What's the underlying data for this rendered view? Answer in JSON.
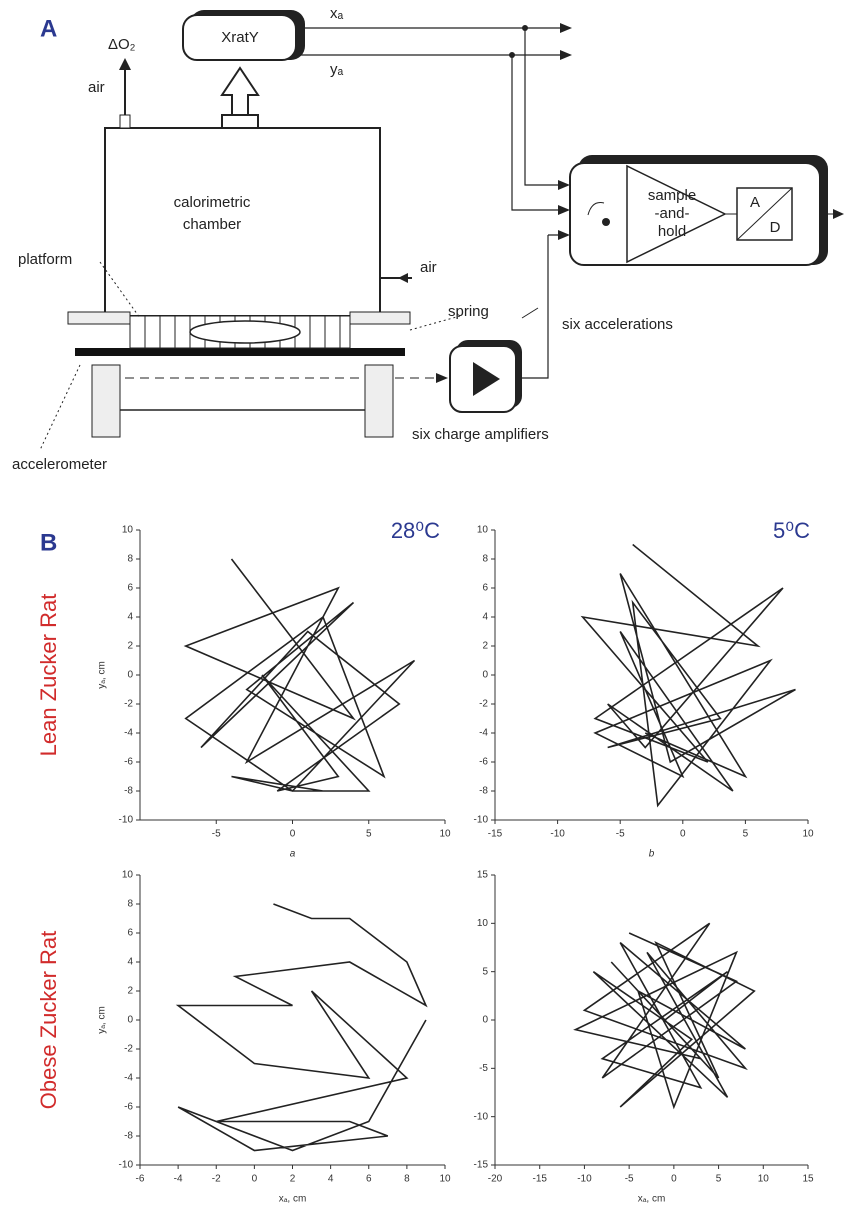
{
  "panel_labels": [
    "A",
    "B"
  ],
  "diagram": {
    "delta_o2": "ΔO₂",
    "air_top": "air",
    "tracker": "XratY",
    "xa": "xₐ",
    "ya": "yₐ",
    "chamber": [
      "calorimetric",
      "chamber"
    ],
    "platform": "platform",
    "air_side": "air",
    "spring": "spring",
    "sample": [
      "sample",
      "-and-",
      "hold"
    ],
    "adc_a": "A",
    "adc_d": "D",
    "accelerations": "six accelerations",
    "amplifiers": "six charge amplifiers",
    "accelerometer": "accelerometer"
  },
  "row_labels": [
    "Lean Zucker Rat",
    "Obese Zucker Rat"
  ],
  "temperatures": [
    "28⁰C",
    "5⁰C"
  ],
  "chart_data": [
    {
      "type": "line",
      "sublabel": "a",
      "ylabel": "yₐ, cm",
      "color": "#222",
      "xlim": [
        -10,
        10
      ],
      "ylim": [
        -10,
        10
      ],
      "xticks": [
        -5,
        0,
        5,
        10
      ],
      "yticks": [
        -10,
        -8,
        -6,
        -4,
        -2,
        0,
        2,
        4,
        6,
        8,
        10
      ],
      "x": [
        -4,
        4,
        -7,
        3,
        -3,
        8,
        0,
        -7,
        2,
        6,
        -3,
        4,
        -6,
        1,
        7,
        -1,
        3,
        -2,
        5,
        0,
        -4,
        2
      ],
      "values": [
        8,
        -3,
        2,
        6,
        -6,
        1,
        -8,
        -3,
        4,
        -7,
        -1,
        5,
        -5,
        3,
        -2,
        -8,
        -7,
        0,
        -8,
        -8,
        -7,
        -8
      ]
    },
    {
      "type": "line",
      "sublabel": "b",
      "color": "#222",
      "xlim": [
        -15,
        10
      ],
      "ylim": [
        -10,
        10
      ],
      "xticks": [
        -15,
        -10,
        -5,
        0,
        5,
        10
      ],
      "yticks": [
        -10,
        -8,
        -6,
        -4,
        -2,
        0,
        2,
        4,
        6,
        8,
        10
      ],
      "x": [
        -4,
        6,
        -8,
        2,
        -7,
        8,
        -3,
        -6,
        4,
        -5,
        0,
        -7,
        7,
        -2,
        -4,
        3,
        -6,
        9,
        -1,
        -5,
        5,
        -3
      ],
      "values": [
        9,
        2,
        4,
        -6,
        -3,
        6,
        -5,
        -2,
        -8,
        3,
        -7,
        -4,
        1,
        -9,
        5,
        -3,
        -5,
        -1,
        -6,
        7,
        -7,
        -4
      ]
    },
    {
      "type": "line",
      "sublabel": "",
      "ylabel": "yₐ, cm",
      "xlabel": "xₐ, cm",
      "color": "#222",
      "xlim": [
        -6,
        10
      ],
      "ylim": [
        -10,
        10
      ],
      "xticks": [
        -6,
        -4,
        -2,
        0,
        2,
        4,
        6,
        8,
        10
      ],
      "yticks": [
        -10,
        -8,
        -6,
        -4,
        -2,
        0,
        2,
        4,
        6,
        8,
        10
      ],
      "x": [
        1,
        3,
        5,
        6,
        8,
        9,
        5,
        -1,
        2,
        -4,
        0,
        6,
        3,
        8,
        -2,
        5,
        7,
        0,
        -4,
        2,
        6,
        9
      ],
      "values": [
        8,
        7,
        7,
        6,
        4,
        1,
        4,
        3,
        1,
        1,
        -3,
        -4,
        2,
        -4,
        -7,
        -7,
        -8,
        -9,
        -6,
        -9,
        -7,
        0
      ]
    },
    {
      "type": "line",
      "sublabel": "",
      "xlabel": "xₐ, cm",
      "color": "#222",
      "xlim": [
        -20,
        15
      ],
      "ylim": [
        -15,
        15
      ],
      "xticks": [
        -20,
        -15,
        -10,
        -5,
        0,
        5,
        10,
        15
      ],
      "yticks": [
        -15,
        -10,
        -5,
        0,
        5,
        10,
        15
      ],
      "x": [
        -5,
        7,
        -8,
        4,
        -10,
        8,
        -3,
        6,
        -9,
        2,
        -6,
        9,
        -2,
        5,
        -7,
        3,
        -11,
        7,
        0,
        -4,
        8,
        -6,
        3,
        -8,
        6,
        -1
      ],
      "values": [
        9,
        4,
        -6,
        10,
        1,
        -5,
        7,
        -8,
        5,
        -2,
        -9,
        3,
        8,
        -6,
        6,
        -4,
        -1,
        7,
        -9,
        3,
        -3,
        8,
        -7,
        -4,
        5,
        0
      ]
    }
  ]
}
